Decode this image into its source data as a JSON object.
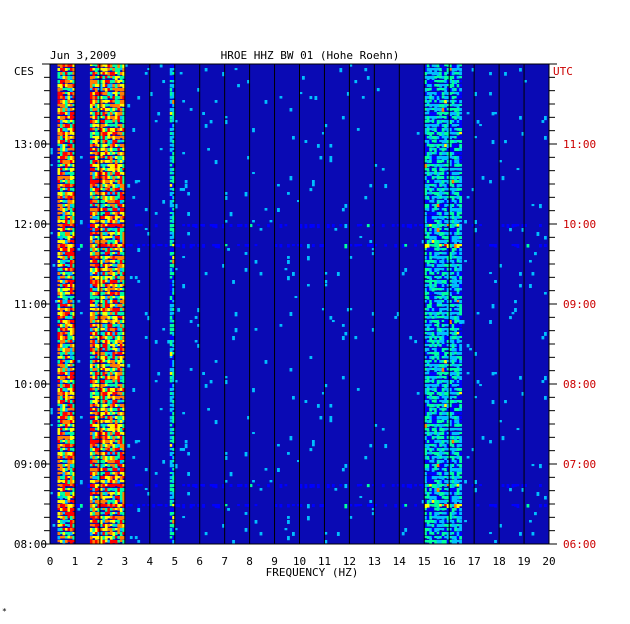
{
  "chart_data": {
    "type": "heatmap",
    "title": "HROE HHZ BW 01 (Hohe Roehn)",
    "date": "Jun 3,2009",
    "left_timezone": "CES",
    "right_timezone": "UTC",
    "xlabel": "FREQUENCY (HZ)",
    "xlim": [
      0,
      20
    ],
    "x_ticks": [
      "0",
      "1",
      "2",
      "3",
      "4",
      "5",
      "6",
      "7",
      "8",
      "9",
      "10",
      "11",
      "12",
      "13",
      "14",
      "15",
      "16",
      "17",
      "18",
      "19",
      "20"
    ],
    "left_ticks": [
      "13:00",
      "12:00",
      "11:00",
      "10:00",
      "09:00",
      "08:00"
    ],
    "right_ticks": [
      "11:00",
      "10:00",
      "09:00",
      "08:00",
      "07:00",
      "06:00"
    ],
    "time_range_ces": [
      "08:00",
      "14:00"
    ],
    "colormap": [
      "#000080",
      "#0000ff",
      "#00c0ff",
      "#00ffa0",
      "#ffff00",
      "#ff8000",
      "#ff0000"
    ],
    "energy_bands_hz": [
      {
        "from": 0.3,
        "to": 1.0,
        "level": "high"
      },
      {
        "from": 1.6,
        "to": 3.0,
        "level": "high"
      },
      {
        "from": 4.8,
        "to": 5.0,
        "level": "medium"
      },
      {
        "from": 15.0,
        "to": 16.5,
        "level": "medium"
      }
    ]
  },
  "colors": {
    "background": "#ffffff",
    "plot_base": "#0a0ab4",
    "grid": "#000000",
    "utc_labels": "#cc0000"
  },
  "corner_mark": "*"
}
